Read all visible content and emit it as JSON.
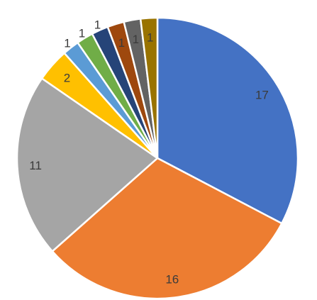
{
  "chart_data": {
    "type": "pie",
    "title": "",
    "start_angle_deg": 0,
    "direction": "clockwise",
    "legend": "none",
    "slices": [
      {
        "value": 17,
        "label": "17",
        "color": "#4472C4"
      },
      {
        "value": 16,
        "label": "16",
        "color": "#ED7D31"
      },
      {
        "value": 11,
        "label": "11",
        "color": "#A5A5A5"
      },
      {
        "value": 2,
        "label": "2",
        "color": "#FFC000"
      },
      {
        "value": 1,
        "label": "1",
        "color": "#5B9BD5"
      },
      {
        "value": 1,
        "label": "1",
        "color": "#70AD47"
      },
      {
        "value": 1,
        "label": "1",
        "color": "#264478"
      },
      {
        "value": 1,
        "label": "1",
        "color": "#9E480E"
      },
      {
        "value": 1,
        "label": "1",
        "color": "#636363"
      },
      {
        "value": 1,
        "label": "1",
        "color": "#997300"
      }
    ]
  }
}
